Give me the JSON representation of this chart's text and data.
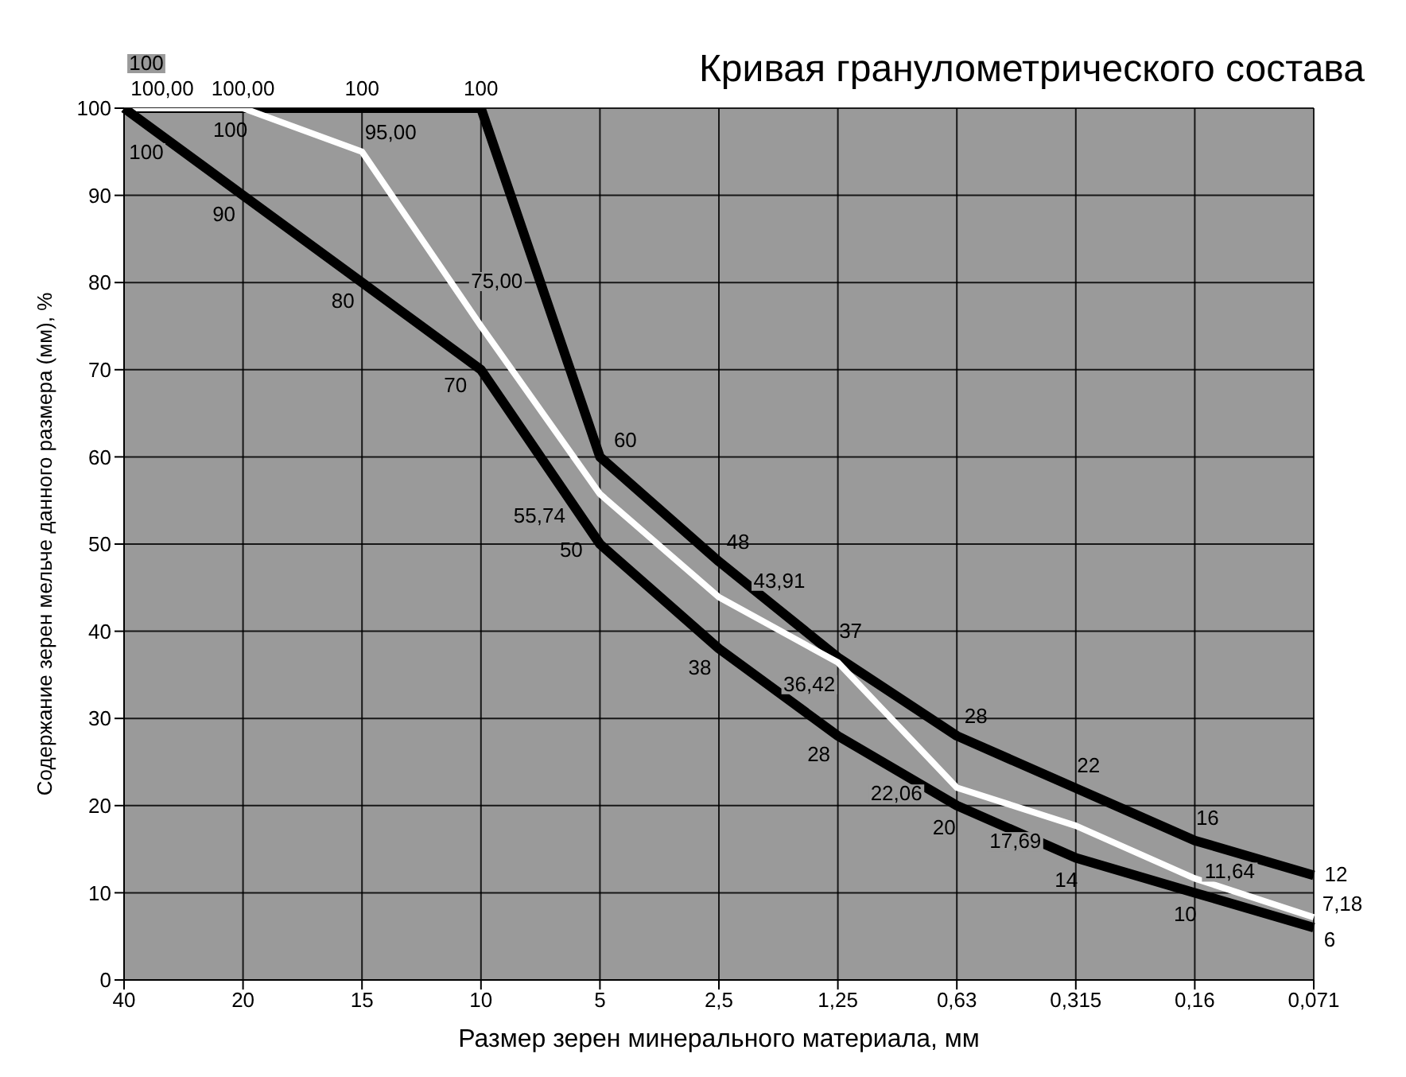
{
  "chart_data": {
    "type": "line",
    "title": "Кривая гранулометрического состава",
    "xlabel": "Размер зерен  минерального материала, мм",
    "ylabel": "Содержание зерен мельче данного размера (мм), %",
    "categories": [
      "40",
      "20",
      "15",
      "10",
      "5",
      "2,5",
      "1,25",
      "0,63",
      "0,315",
      "0,16",
      "0,071"
    ],
    "series": [
      {
        "color": "#000000",
        "values": [
          100,
          100,
          100,
          100,
          60,
          48,
          37,
          28,
          22,
          16,
          12
        ],
        "value_labels": [
          "100",
          "100",
          "100",
          "100",
          "60",
          "48",
          "37",
          "28",
          "22",
          "16",
          "12"
        ]
      },
      {
        "color": "#ffffff",
        "values": [
          100,
          100,
          95,
          75,
          55.74,
          43.91,
          36.42,
          22.06,
          17.69,
          11.64,
          7.18
        ],
        "value_labels": [
          "100,00",
          "100,00",
          "95,00",
          "75,00",
          "55,74",
          "43,91",
          "36,42",
          "22,06",
          "17,69",
          "11,64",
          "7,18"
        ]
      },
      {
        "color": "#000000",
        "values": [
          100,
          90,
          80,
          70,
          50,
          38,
          28,
          20,
          14,
          10,
          6
        ],
        "value_labels": [
          "100",
          "90",
          "80",
          "70",
          "50",
          "38",
          "28",
          "20",
          "14",
          "10",
          "6"
        ]
      }
    ],
    "ylim": [
      0,
      100
    ],
    "yticks": [
      0,
      10,
      20,
      30,
      40,
      50,
      60,
      70,
      80,
      90,
      100
    ],
    "grid": true,
    "legend": false,
    "marker": "none",
    "line_style": "solid"
  }
}
